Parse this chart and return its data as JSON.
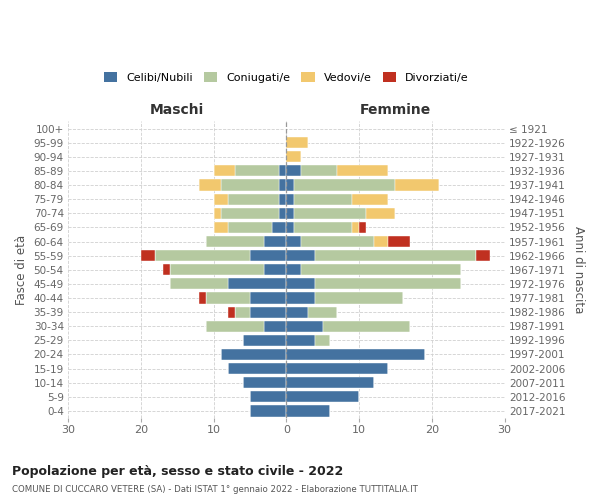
{
  "age_groups": [
    "100+",
    "95-99",
    "90-94",
    "85-89",
    "80-84",
    "75-79",
    "70-74",
    "65-69",
    "60-64",
    "55-59",
    "50-54",
    "45-49",
    "40-44",
    "35-39",
    "30-34",
    "25-29",
    "20-24",
    "15-19",
    "10-14",
    "5-9",
    "0-4"
  ],
  "birth_years": [
    "≤ 1921",
    "1922-1926",
    "1927-1931",
    "1932-1936",
    "1937-1941",
    "1942-1946",
    "1947-1951",
    "1952-1956",
    "1957-1961",
    "1962-1966",
    "1967-1971",
    "1972-1976",
    "1977-1981",
    "1982-1986",
    "1987-1991",
    "1992-1996",
    "1997-2001",
    "2002-2006",
    "2007-2011",
    "2012-2016",
    "2017-2021"
  ],
  "colors": {
    "celibe": "#4472a0",
    "coniugato": "#b5c9a0",
    "vedovo": "#f2c86e",
    "divorziato": "#c03020"
  },
  "maschi": {
    "celibe": [
      0,
      0,
      0,
      1,
      1,
      1,
      1,
      2,
      3,
      5,
      3,
      8,
      5,
      5,
      3,
      6,
      9,
      8,
      6,
      5,
      5
    ],
    "coniugato": [
      0,
      0,
      0,
      6,
      8,
      7,
      8,
      6,
      8,
      13,
      13,
      8,
      6,
      2,
      8,
      0,
      0,
      0,
      0,
      0,
      0
    ],
    "vedovo": [
      0,
      0,
      0,
      3,
      3,
      2,
      1,
      2,
      0,
      0,
      0,
      0,
      0,
      0,
      0,
      0,
      0,
      0,
      0,
      0,
      0
    ],
    "divorziato": [
      0,
      0,
      0,
      0,
      0,
      0,
      0,
      0,
      0,
      2,
      1,
      0,
      1,
      1,
      0,
      0,
      0,
      0,
      0,
      0,
      0
    ]
  },
  "femmine": {
    "nubile": [
      0,
      0,
      0,
      2,
      1,
      1,
      1,
      1,
      2,
      4,
      2,
      4,
      4,
      3,
      5,
      4,
      19,
      14,
      12,
      10,
      6
    ],
    "coniugata": [
      0,
      0,
      0,
      5,
      14,
      8,
      10,
      8,
      10,
      22,
      22,
      20,
      12,
      4,
      12,
      2,
      0,
      0,
      0,
      0,
      0
    ],
    "vedova": [
      0,
      3,
      2,
      7,
      6,
      5,
      4,
      1,
      2,
      0,
      0,
      0,
      0,
      0,
      0,
      0,
      0,
      0,
      0,
      0,
      0
    ],
    "divorziata": [
      0,
      0,
      0,
      0,
      0,
      0,
      0,
      1,
      3,
      2,
      0,
      0,
      0,
      0,
      0,
      0,
      0,
      0,
      0,
      0,
      0
    ]
  },
  "xlim": 30,
  "title_main": "Popolazione per età, sesso e stato civile - 2022",
  "title_sub": "COMUNE DI CUCCARO VETERE (SA) - Dati ISTAT 1° gennaio 2022 - Elaborazione TUTTITALIA.IT",
  "xlabel_left": "Maschi",
  "xlabel_right": "Femmine",
  "ylabel_left": "Fasce di età",
  "ylabel_right": "Anni di nascita",
  "legend_labels": [
    "Celibi/Nubili",
    "Coniugati/e",
    "Vedovi/e",
    "Divorziati/e"
  ],
  "background_color": "#ffffff",
  "grid_color": "#d0d0d0",
  "bar_height": 0.78
}
